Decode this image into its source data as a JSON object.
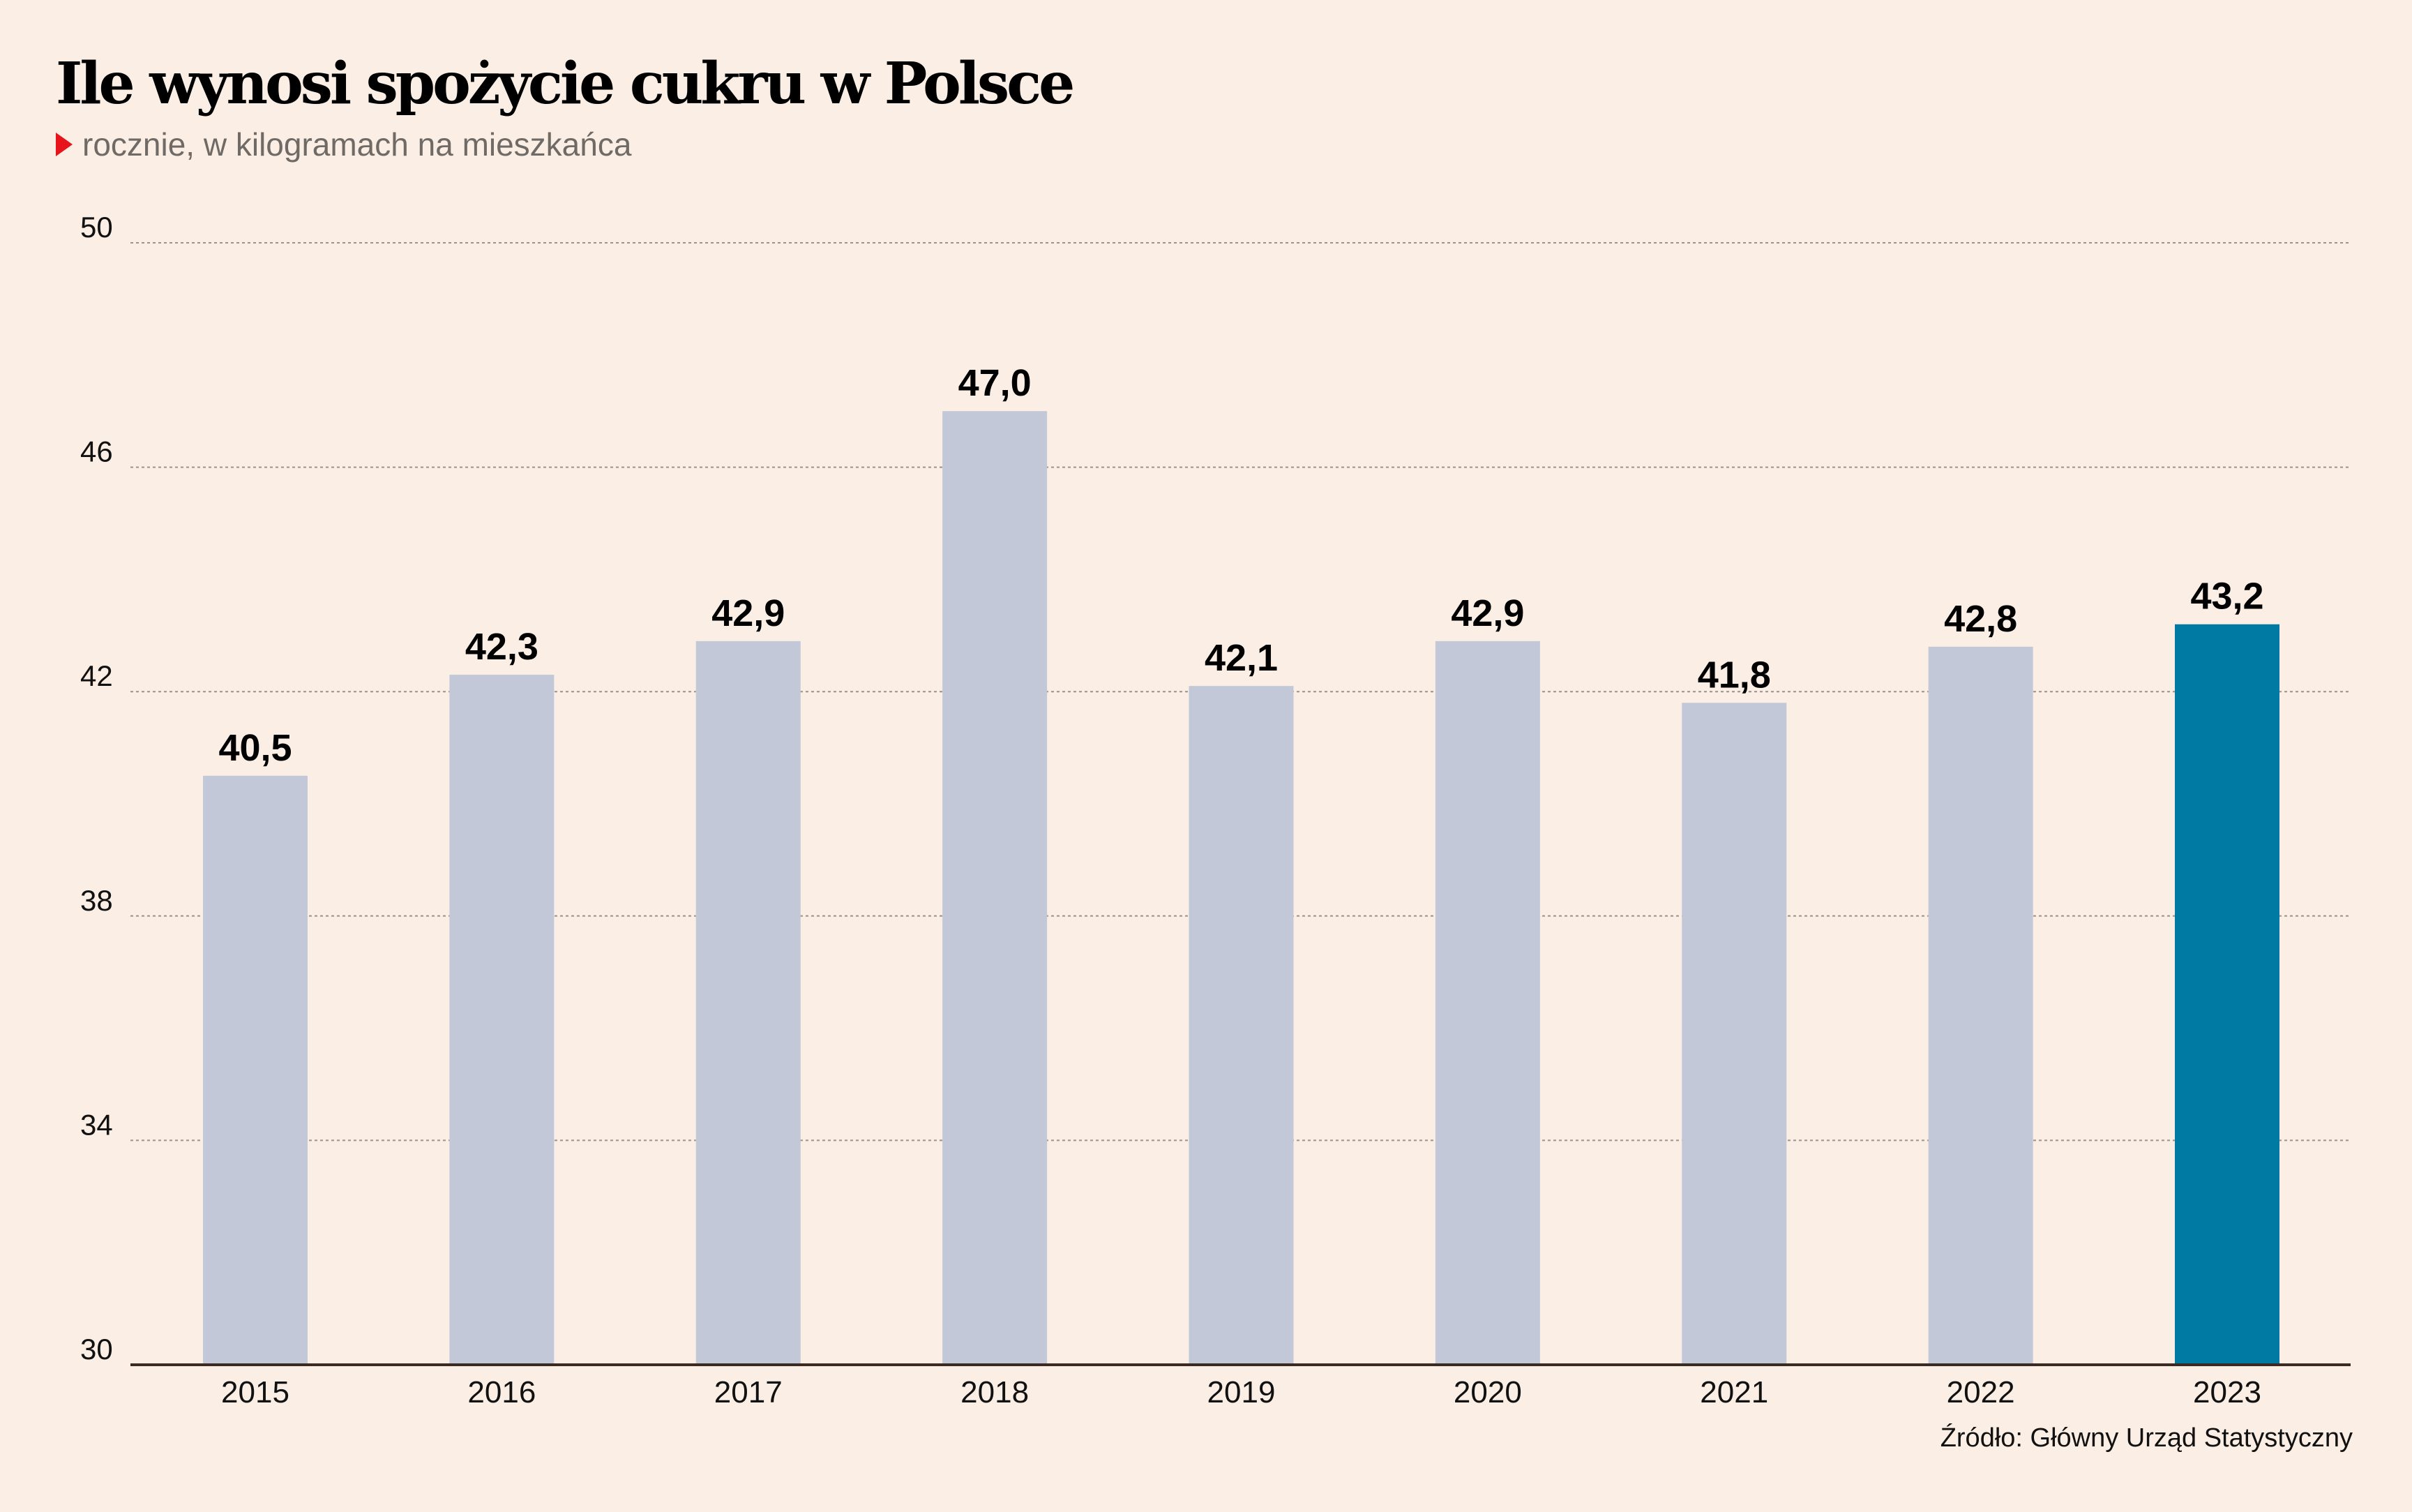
{
  "title": "Ile wynosi spożycie cukru w Polsce",
  "subtitle": "rocznie, w kilogramach na mieszkańca",
  "source": "Źródło: Główny Urząd Statystyczny",
  "colors": {
    "background": "#FBEEE4",
    "bar": "#C2C8D8",
    "highlight": "#007AA3",
    "axis": "#3a2a22",
    "grid": "#9a928c"
  },
  "chart_data": {
    "type": "bar",
    "title": "Ile wynosi spożycie cukru w Polsce",
    "subtitle": "rocznie, w kilogramach na mieszkańca",
    "xlabel": "",
    "ylabel": "",
    "categories": [
      "2015",
      "2016",
      "2017",
      "2018",
      "2019",
      "2020",
      "2021",
      "2022",
      "2023"
    ],
    "values": [
      40.5,
      42.3,
      42.9,
      47.0,
      42.1,
      42.9,
      41.8,
      42.8,
      43.2
    ],
    "value_labels": [
      "40,5",
      "42,3",
      "42,9",
      "47,0",
      "42,1",
      "42,9",
      "41,8",
      "42,8",
      "43,2"
    ],
    "highlight": "2023",
    "ylim": [
      30,
      50
    ],
    "yticks": [
      30,
      34,
      38,
      42,
      46,
      50
    ],
    "grid": true,
    "legend": "none"
  }
}
